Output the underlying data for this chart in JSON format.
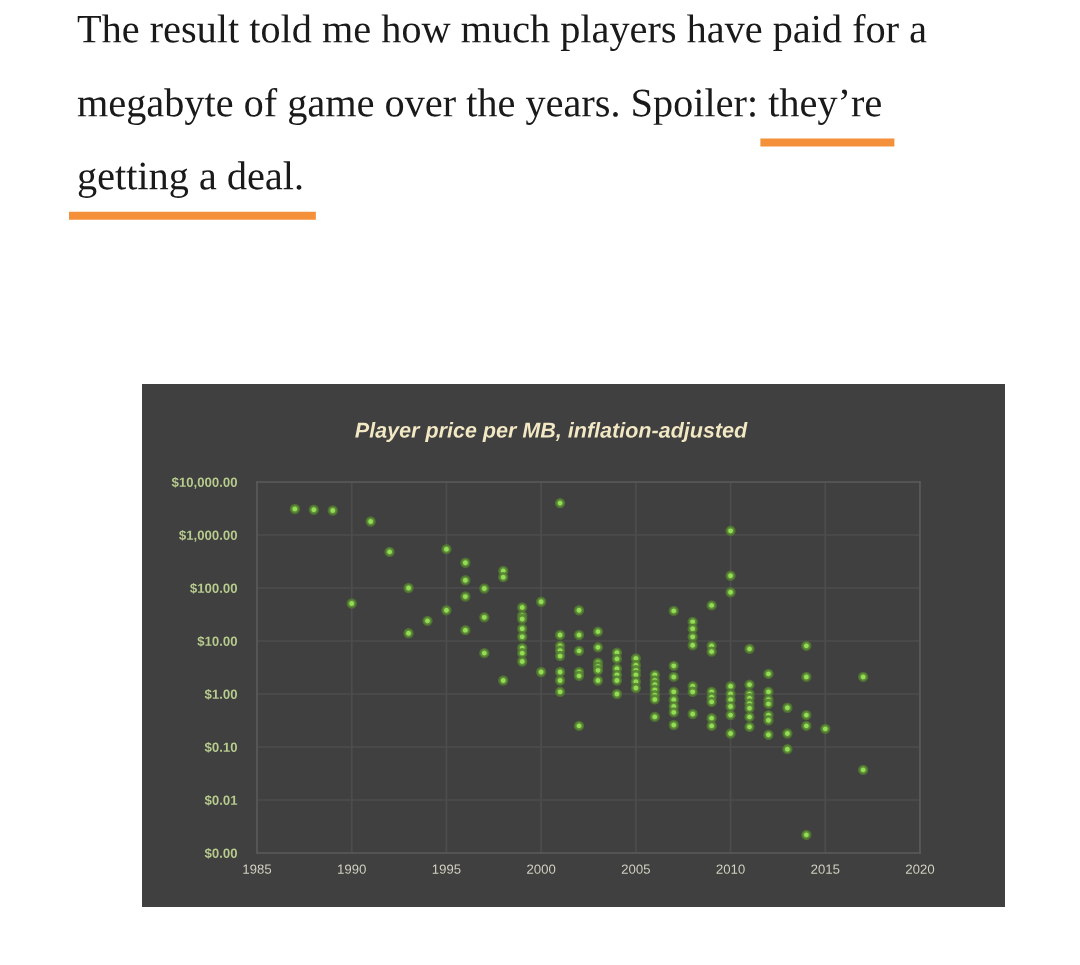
{
  "chart_data": {
    "type": "scatter",
    "title": "Player price per MB, inflation-adjusted",
    "annotations": [
      "The result told me how much players have paid for a megabyte of game over the years. Spoiler: they’re getting a deal."
    ],
    "x": [
      1987,
      1988,
      1989,
      1990,
      1991,
      1992,
      1993,
      1993,
      1994,
      1995,
      1995,
      1996,
      1996,
      1996,
      1996,
      1997,
      1997,
      1997,
      1998,
      1998,
      1998,
      1999,
      1999,
      1999,
      1999,
      1999,
      1999,
      1999,
      1999,
      2000,
      2000,
      2001,
      2001,
      2001,
      2001,
      2001,
      2001,
      2001,
      2001,
      2002,
      2002,
      2002,
      2002,
      2002,
      2002,
      2003,
      2003,
      2003,
      2003,
      2003,
      2003,
      2004,
      2004,
      2004,
      2004,
      2004,
      2004,
      2005,
      2005,
      2005,
      2005,
      2005,
      2005,
      2006,
      2006,
      2006,
      2006,
      2006,
      2006,
      2006,
      2007,
      2007,
      2007,
      2007,
      2007,
      2007,
      2007,
      2007,
      2008,
      2008,
      2008,
      2008,
      2008,
      2008,
      2008,
      2009,
      2009,
      2009,
      2009,
      2009,
      2009,
      2009,
      2009,
      2010,
      2010,
      2010,
      2010,
      2010,
      2010,
      2010,
      2010,
      2010,
      2011,
      2011,
      2011,
      2011,
      2011,
      2011,
      2011,
      2011,
      2012,
      2012,
      2012,
      2012,
      2012,
      2012,
      2012,
      2013,
      2013,
      2013,
      2014,
      2014,
      2014,
      2014,
      2014,
      2015,
      2017,
      2017
    ],
    "series": [
      {
        "color": "#93dc55",
        "values": [
          3100,
          3000,
          2900,
          51,
          1800,
          480,
          100,
          14,
          24,
          540,
          38,
          300,
          140,
          69,
          16,
          98,
          28,
          5.9,
          210,
          160,
          1.8,
          43,
          30,
          26,
          17,
          12,
          7.4,
          5.9,
          4.1,
          55,
          2.6,
          4000,
          13,
          8.1,
          6.6,
          5.2,
          2.6,
          1.8,
          1.1,
          38,
          13,
          6.5,
          2.6,
          2.2,
          0.25,
          15,
          7.6,
          3.9,
          3.3,
          2.8,
          1.8,
          6.0,
          4.6,
          3.0,
          2.3,
          1.8,
          1.0,
          4.7,
          3.5,
          2.8,
          2.3,
          1.7,
          1.3,
          2.3,
          1.8,
          1.5,
          1.2,
          0.95,
          0.79,
          0.37,
          37,
          3.4,
          2.1,
          1.1,
          0.78,
          0.58,
          0.45,
          0.26,
          23,
          17,
          12,
          8.3,
          1.4,
          1.1,
          0.42,
          47,
          8.1,
          6.3,
          1.1,
          0.87,
          0.71,
          0.35,
          0.25,
          1200,
          170,
          83,
          1.4,
          1.0,
          0.78,
          0.58,
          0.4,
          0.18,
          7.1,
          1.5,
          1.0,
          0.83,
          0.66,
          0.54,
          0.37,
          0.24,
          2.4,
          1.1,
          0.78,
          0.65,
          0.4,
          0.32,
          0.17,
          0.55,
          0.18,
          0.091,
          8.1,
          2.1,
          0.4,
          0.25,
          0.0022,
          0.22,
          2.1,
          0.037
        ]
      }
    ],
    "xlim": [
      1985,
      2020
    ],
    "xticks": [
      1985,
      1990,
      1995,
      2000,
      2005,
      2010,
      2015,
      2020
    ],
    "ylim": [
      0.001,
      10000
    ],
    "yticks": [
      {
        "value": 0.001,
        "label": "$0.00"
      },
      {
        "value": 0.01,
        "label": "$0.01"
      },
      {
        "value": 0.1,
        "label": "$0.10"
      },
      {
        "value": 1,
        "label": "$1.00"
      },
      {
        "value": 10,
        "label": "$10.00"
      },
      {
        "value": 100,
        "label": "$100.00"
      },
      {
        "value": 1000,
        "label": "$1,000.00"
      },
      {
        "value": 10000,
        "label": "$10,000.00"
      }
    ],
    "log": "y",
    "grid": true,
    "marker": "circle"
  }
}
